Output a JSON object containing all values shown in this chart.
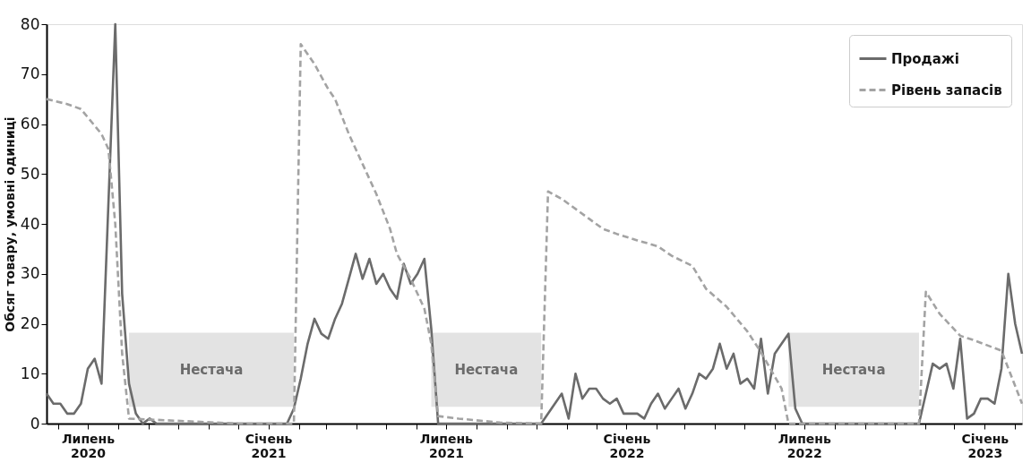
{
  "chart_data": {
    "type": "line",
    "ylabel": "Обсяг товару, умовні одиниці",
    "ylim": [
      0,
      80
    ],
    "yticks": [
      0,
      10,
      20,
      30,
      40,
      50,
      60,
      70,
      80
    ],
    "xlim": [
      "2020-05-20",
      "2023-02-08"
    ],
    "xticks": [
      {
        "value": "2020-06-01",
        "label": null
      },
      {
        "value": "2020-07-01",
        "label": "Липень 2020"
      },
      {
        "value": "2020-08-01",
        "label": null
      },
      {
        "value": "2020-09-01",
        "label": null
      },
      {
        "value": "2020-10-01",
        "label": null
      },
      {
        "value": "2020-11-01",
        "label": null
      },
      {
        "value": "2020-12-01",
        "label": null
      },
      {
        "value": "2021-01-01",
        "label": "Січень 2021"
      },
      {
        "value": "2021-02-01",
        "label": null
      },
      {
        "value": "2021-03-01",
        "label": null
      },
      {
        "value": "2021-04-01",
        "label": null
      },
      {
        "value": "2021-05-01",
        "label": null
      },
      {
        "value": "2021-06-01",
        "label": null
      },
      {
        "value": "2021-07-01",
        "label": "Липень 2021"
      },
      {
        "value": "2021-08-01",
        "label": null
      },
      {
        "value": "2021-09-01",
        "label": null
      },
      {
        "value": "2021-10-01",
        "label": null
      },
      {
        "value": "2021-11-01",
        "label": null
      },
      {
        "value": "2021-12-01",
        "label": null
      },
      {
        "value": "2022-01-01",
        "label": "Січень 2022"
      },
      {
        "value": "2022-02-01",
        "label": null
      },
      {
        "value": "2022-03-01",
        "label": null
      },
      {
        "value": "2022-04-01",
        "label": null
      },
      {
        "value": "2022-05-01",
        "label": null
      },
      {
        "value": "2022-06-01",
        "label": null
      },
      {
        "value": "2022-07-01",
        "label": "Липень 2022"
      },
      {
        "value": "2022-08-01",
        "label": null
      },
      {
        "value": "2022-09-01",
        "label": null
      },
      {
        "value": "2022-10-01",
        "label": null
      },
      {
        "value": "2022-11-01",
        "label": null
      },
      {
        "value": "2022-12-01",
        "label": null
      },
      {
        "value": "2023-01-01",
        "label": "Січень 2023"
      },
      {
        "value": "2023-02-01",
        "label": null
      }
    ],
    "grid": false,
    "legend": "top right",
    "bands": [
      {
        "axis": "x",
        "from": "2020-08-12",
        "to": "2021-01-27",
        "label": "Нестача",
        "color": "#e3e3e3"
      },
      {
        "axis": "x",
        "from": "2021-06-16",
        "to": "2021-10-06",
        "label": "Нестача",
        "color": "#e3e3e3"
      },
      {
        "axis": "x",
        "from": "2022-06-15",
        "to": "2022-10-26",
        "label": "Нестача",
        "color": "#e3e3e3"
      }
    ],
    "series": [
      {
        "name": "Продажі",
        "color": "#6b6b6b",
        "line_style": "solid",
        "x": [
          "2020-05-20",
          "2020-05-27",
          "2020-06-03",
          "2020-06-10",
          "2020-06-17",
          "2020-06-24",
          "2020-07-01",
          "2020-07-08",
          "2020-07-15",
          "2020-07-22",
          "2020-07-29",
          "2020-08-05",
          "2020-08-12",
          "2020-08-19",
          "2020-08-26",
          "2020-09-02",
          "2020-09-09",
          "2021-01-20",
          "2021-01-27",
          "2021-02-03",
          "2021-02-10",
          "2021-02-17",
          "2021-02-24",
          "2021-03-03",
          "2021-03-10",
          "2021-03-17",
          "2021-03-24",
          "2021-03-31",
          "2021-04-07",
          "2021-04-14",
          "2021-04-21",
          "2021-04-28",
          "2021-05-05",
          "2021-05-12",
          "2021-05-19",
          "2021-05-26",
          "2021-06-02",
          "2021-06-09",
          "2021-06-16",
          "2021-06-23",
          "2021-10-06",
          "2021-10-27",
          "2021-11-03",
          "2021-11-10",
          "2021-11-17",
          "2021-11-24",
          "2021-12-01",
          "2021-12-08",
          "2021-12-15",
          "2021-12-22",
          "2021-12-29",
          "2022-01-05",
          "2022-01-12",
          "2022-01-19",
          "2022-01-26",
          "2022-02-02",
          "2022-02-09",
          "2022-02-16",
          "2022-02-23",
          "2022-03-02",
          "2022-03-09",
          "2022-03-16",
          "2022-03-23",
          "2022-03-30",
          "2022-04-06",
          "2022-04-13",
          "2022-04-20",
          "2022-04-27",
          "2022-05-04",
          "2022-05-11",
          "2022-05-18",
          "2022-05-25",
          "2022-06-01",
          "2022-06-08",
          "2022-06-15",
          "2022-06-22",
          "2022-06-29",
          "2022-10-26",
          "2022-11-02",
          "2022-11-09",
          "2022-11-16",
          "2022-11-23",
          "2022-11-30",
          "2022-12-07",
          "2022-12-14",
          "2022-12-21",
          "2022-12-28",
          "2023-01-04",
          "2023-01-11",
          "2023-01-18",
          "2023-01-25",
          "2023-02-01",
          "2023-02-08"
        ],
        "values": [
          6,
          4,
          4,
          2,
          2,
          4,
          11,
          13,
          8,
          44,
          80,
          26,
          8,
          2,
          0,
          1,
          0,
          0,
          3,
          9,
          16,
          21,
          18,
          17,
          21,
          24,
          29,
          34,
          29,
          33,
          28,
          30,
          27,
          25,
          32,
          28,
          30,
          33,
          19,
          0,
          0,
          6,
          1,
          10,
          5,
          7,
          7,
          5,
          4,
          5,
          2,
          2,
          2,
          1,
          4,
          6,
          3,
          5,
          7,
          3,
          6,
          10,
          9,
          11,
          16,
          11,
          14,
          8,
          9,
          7,
          17,
          6,
          14,
          16,
          18,
          3,
          0,
          0,
          6,
          12,
          11,
          12,
          7,
          17,
          1,
          2,
          5,
          5,
          4,
          11,
          30,
          20,
          14
        ]
      },
      {
        "name": "Рівень запасів",
        "color": "#a3a3a3",
        "line_style": "dashed",
        "x": [
          "2020-05-20",
          "2020-06-10",
          "2020-06-24",
          "2020-07-15",
          "2020-07-22",
          "2020-07-29",
          "2020-08-05",
          "2020-08-12",
          "2020-10-07",
          "2020-12-02",
          "2021-01-20",
          "2021-01-27",
          "2021-02-03",
          "2021-02-17",
          "2021-03-03",
          "2021-03-10",
          "2021-03-24",
          "2021-04-07",
          "2021-04-21",
          "2021-05-05",
          "2021-05-12",
          "2021-05-26",
          "2021-06-09",
          "2021-06-16",
          "2021-06-23",
          "2021-07-14",
          "2021-08-25",
          "2021-10-06",
          "2021-10-13",
          "2021-10-27",
          "2021-11-24",
          "2021-12-08",
          "2021-12-22",
          "2022-01-12",
          "2022-02-02",
          "2022-02-16",
          "2022-03-09",
          "2022-03-23",
          "2022-04-13",
          "2022-05-04",
          "2022-05-18",
          "2022-06-08",
          "2022-06-15",
          "2022-10-26",
          "2022-11-02",
          "2022-11-16",
          "2022-12-07",
          "2022-12-21",
          "2023-01-18",
          "2023-02-08"
        ],
        "values": [
          65,
          64,
          63,
          58,
          55,
          40,
          14,
          1,
          0.5,
          0,
          0,
          0,
          76,
          72,
          67,
          65,
          58,
          52,
          46,
          39,
          34,
          29,
          23,
          16,
          1.5,
          1,
          0.2,
          0,
          46.5,
          45,
          41,
          39,
          38,
          36.7,
          35.5,
          33.6,
          31.6,
          27,
          23.4,
          18.5,
          14.3,
          7,
          0,
          0,
          26.4,
          22,
          17.6,
          16.7,
          14.6,
          4
        ]
      }
    ]
  }
}
